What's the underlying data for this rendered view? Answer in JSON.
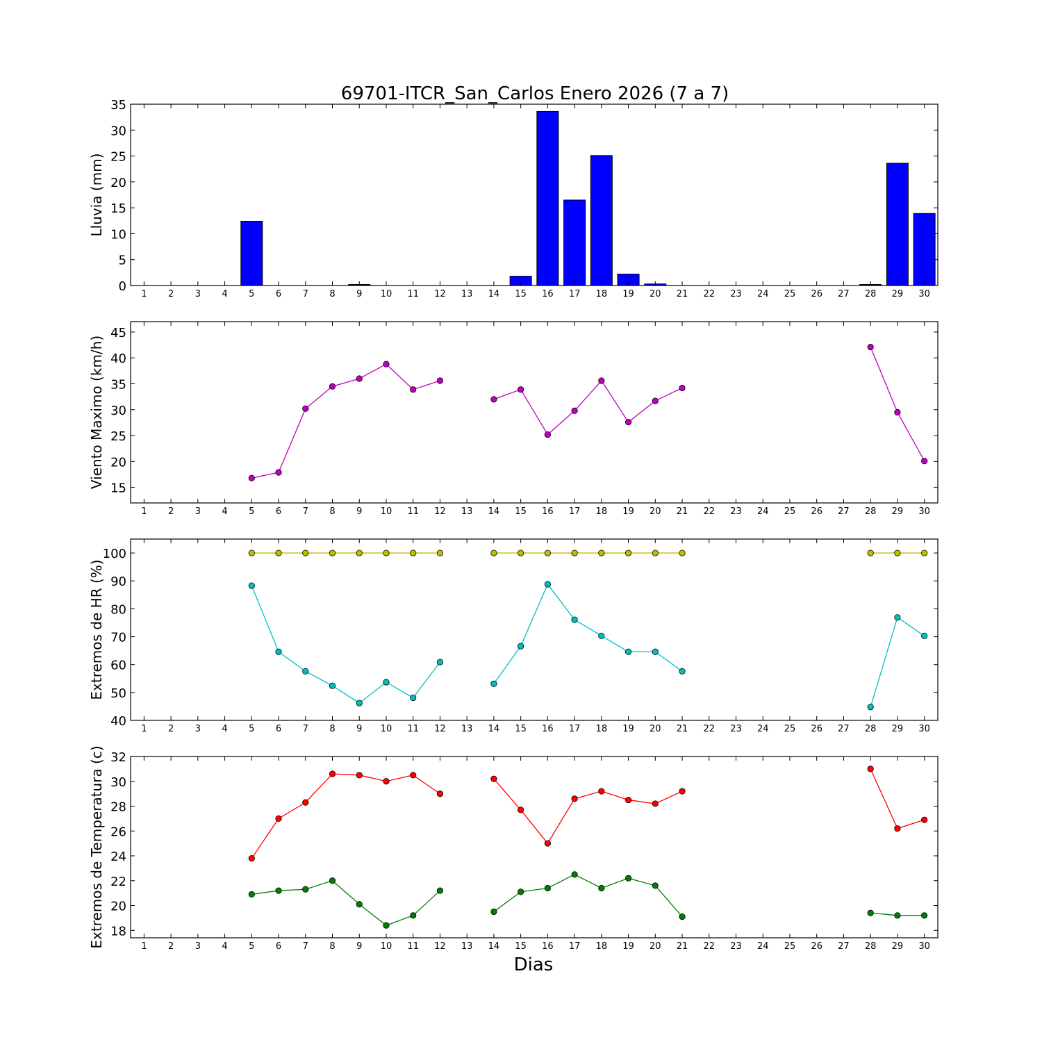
{
  "figure": {
    "title": "69701-ITCR_San_Carlos Enero 2026  (7 a 7)",
    "xlabel": "Dias"
  },
  "colors": {
    "rain_bar": "#0000ff",
    "wind": "#bf00bf",
    "hr_max": "#bfbf00",
    "hr_min": "#00bfbf",
    "temp_max": "#ff0000",
    "temp_min": "#008000"
  },
  "chart_data": [
    {
      "type": "bar",
      "ylabel": "Lluvia (mm)",
      "categories": [
        1,
        2,
        3,
        4,
        5,
        6,
        7,
        8,
        9,
        10,
        11,
        12,
        13,
        14,
        15,
        16,
        17,
        18,
        19,
        20,
        21,
        22,
        23,
        24,
        25,
        26,
        27,
        28,
        29,
        30
      ],
      "values": [
        0,
        0,
        0,
        0,
        12.4,
        0,
        0,
        0,
        0.2,
        0,
        0,
        0,
        0,
        0,
        1.8,
        33.6,
        16.5,
        25.1,
        2.2,
        0.3,
        0,
        0,
        0,
        0,
        0,
        0,
        0,
        0.2,
        23.6,
        13.9
      ],
      "ylim": [
        0,
        35
      ],
      "xlim": [
        0.5,
        30.5
      ],
      "yticks": [
        0,
        5,
        10,
        15,
        20,
        25,
        30,
        35
      ],
      "series": [
        {
          "color": "#0000ff",
          "values": [
            0,
            0,
            0,
            0,
            12.4,
            0,
            0,
            0,
            0.2,
            0,
            0,
            0,
            0,
            0,
            1.8,
            33.6,
            16.5,
            25.1,
            2.2,
            0.3,
            0,
            0,
            0,
            0,
            0,
            0,
            0,
            0.2,
            23.6,
            13.9
          ]
        }
      ]
    },
    {
      "type": "line",
      "ylabel": "Viento Maximo (km/h)",
      "x": [
        1,
        2,
        3,
        4,
        5,
        6,
        7,
        8,
        9,
        10,
        11,
        12,
        13,
        14,
        15,
        16,
        17,
        18,
        19,
        20,
        21,
        22,
        23,
        24,
        25,
        26,
        27,
        28,
        29,
        30
      ],
      "ylim": [
        12,
        47
      ],
      "xlim": [
        0.5,
        30.5
      ],
      "yticks": [
        15,
        20,
        25,
        30,
        35,
        40,
        45
      ],
      "series": [
        {
          "color": "#bf00bf",
          "values": [
            null,
            null,
            null,
            null,
            16.8,
            17.9,
            30.2,
            34.5,
            36.0,
            38.8,
            33.9,
            35.6,
            null,
            32.0,
            33.9,
            25.2,
            29.8,
            35.6,
            27.6,
            31.7,
            34.2,
            null,
            null,
            null,
            null,
            null,
            null,
            42.1,
            29.5,
            20.1
          ]
        }
      ]
    },
    {
      "type": "line",
      "ylabel": "Extremos de HR (%)",
      "x": [
        1,
        2,
        3,
        4,
        5,
        6,
        7,
        8,
        9,
        10,
        11,
        12,
        13,
        14,
        15,
        16,
        17,
        18,
        19,
        20,
        21,
        22,
        23,
        24,
        25,
        26,
        27,
        28,
        29,
        30
      ],
      "ylim": [
        40,
        105
      ],
      "xlim": [
        0.5,
        30.5
      ],
      "yticks": [
        40,
        50,
        60,
        70,
        80,
        90,
        100
      ],
      "series": [
        {
          "color": "#bfbf00",
          "values": [
            null,
            null,
            null,
            null,
            100,
            100,
            100,
            100,
            100,
            100,
            100,
            100,
            null,
            100,
            100,
            100,
            100,
            100,
            100,
            100,
            100,
            null,
            null,
            null,
            null,
            null,
            null,
            100,
            100,
            100
          ]
        },
        {
          "color": "#00bfbf",
          "values": [
            null,
            null,
            null,
            null,
            88.3,
            64.6,
            57.6,
            52.4,
            46.2,
            53.7,
            48.1,
            60.9,
            null,
            53.1,
            66.6,
            88.8,
            76.1,
            70.3,
            64.6,
            64.6,
            57.6,
            null,
            null,
            null,
            null,
            null,
            null,
            44.8,
            76.9,
            70.3
          ]
        }
      ]
    },
    {
      "type": "line",
      "ylabel": "Extremos de Temperatura (c)",
      "x": [
        1,
        2,
        3,
        4,
        5,
        6,
        7,
        8,
        9,
        10,
        11,
        12,
        13,
        14,
        15,
        16,
        17,
        18,
        19,
        20,
        21,
        22,
        23,
        24,
        25,
        26,
        27,
        28,
        29,
        30
      ],
      "ylim": [
        17.4,
        32
      ],
      "xlim": [
        0.5,
        30.5
      ],
      "yticks": [
        18,
        20,
        22,
        24,
        26,
        28,
        30,
        32
      ],
      "series": [
        {
          "color": "#ff0000",
          "values": [
            null,
            null,
            null,
            null,
            23.8,
            27.0,
            28.3,
            30.6,
            30.5,
            30.0,
            30.5,
            29.0,
            null,
            30.2,
            27.7,
            25.0,
            28.6,
            29.2,
            28.5,
            28.2,
            29.2,
            null,
            null,
            null,
            null,
            null,
            null,
            31.0,
            26.2,
            26.9
          ]
        },
        {
          "color": "#008000",
          "values": [
            null,
            null,
            null,
            null,
            20.9,
            21.2,
            21.3,
            22.0,
            20.1,
            18.4,
            19.2,
            21.2,
            null,
            19.5,
            21.1,
            21.4,
            22.5,
            21.4,
            22.2,
            21.6,
            19.1,
            null,
            null,
            null,
            null,
            null,
            null,
            19.4,
            19.2,
            19.2
          ]
        }
      ]
    }
  ]
}
